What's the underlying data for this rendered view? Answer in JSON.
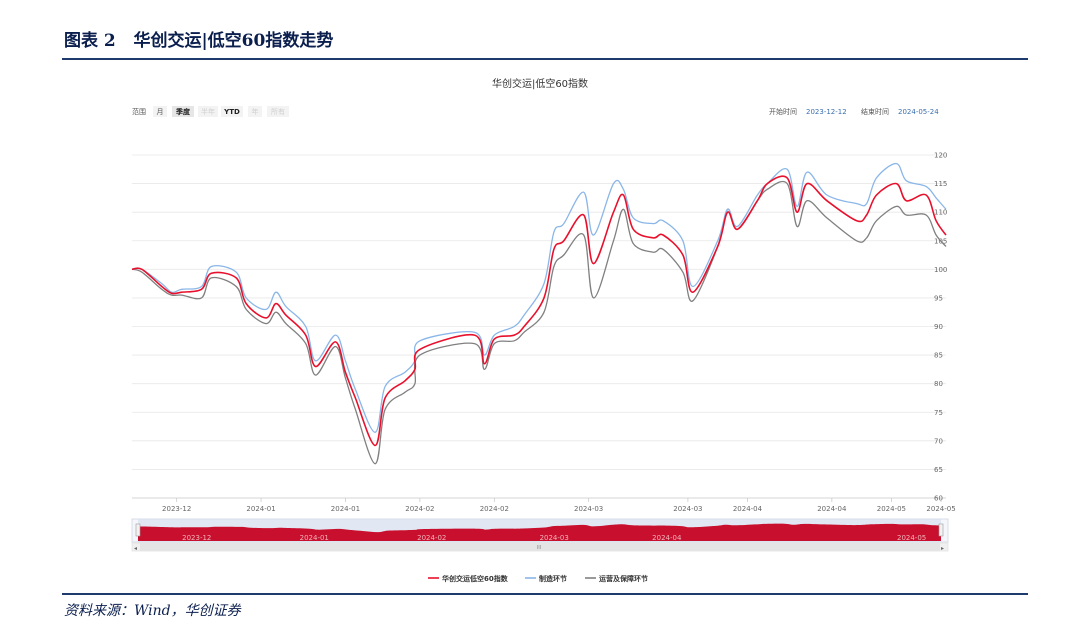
{
  "figure": {
    "title": "图表 2   华创交运|低空60指数走势",
    "source": "资料来源：Wind，华创证券"
  },
  "chart_title": "华创交运|低空60指数",
  "range_selector": {
    "label": "范围",
    "buttons": [
      {
        "label": "月",
        "enabled": true
      },
      {
        "label": "季度",
        "enabled": true,
        "selected": true
      },
      {
        "label": "半年",
        "enabled": false
      },
      {
        "label": "YTD",
        "enabled": true
      },
      {
        "label": "年",
        "enabled": false
      },
      {
        "label": "所有",
        "enabled": false
      }
    ]
  },
  "date_range": {
    "start_label": "开始时间",
    "start": "2023-12-12",
    "end_label": "结束时间",
    "end": "2024-05-24"
  },
  "navigator": {
    "labels": [
      "2023-12",
      "2024-01",
      "2024-02",
      "2024-03",
      "2024-04",
      "2024-05"
    ]
  },
  "colors": {
    "accent": "#1f3b6e",
    "main": "#e8112d",
    "manufacturing": "#8ab6e8",
    "operations": "#808080",
    "navigator": "#c8102e"
  },
  "chart_data": {
    "type": "line",
    "title": "华创交运|低空60指数",
    "xlabel": "",
    "ylabel": "",
    "ylim": [
      60,
      120
    ],
    "yticks": [
      60,
      65,
      70,
      75,
      80,
      85,
      90,
      95,
      100,
      105,
      110,
      115,
      120
    ],
    "grid": true,
    "legend_position": "bottom",
    "x": [
      "2023-12-12",
      "2023-12-14",
      "2023-12-18",
      "2023-12-20",
      "2023-12-22",
      "2023-12-26",
      "2023-12-28",
      "2024-01-02",
      "2024-01-04",
      "2024-01-08",
      "2024-01-10",
      "2024-01-12",
      "2024-01-16",
      "2024-01-18",
      "2024-01-22",
      "2024-01-24",
      "2024-01-26",
      "2024-01-30",
      "2024-02-01",
      "2024-02-05",
      "2024-02-07",
      "2024-02-08",
      "2024-02-19",
      "2024-02-21",
      "2024-02-23",
      "2024-02-27",
      "2024-02-29",
      "2024-03-04",
      "2024-03-06",
      "2024-03-08",
      "2024-03-12",
      "2024-03-14",
      "2024-03-18",
      "2024-03-20",
      "2024-03-22",
      "2024-03-26",
      "2024-03-28",
      "2024-04-01",
      "2024-04-03",
      "2024-04-08",
      "2024-04-10",
      "2024-04-12",
      "2024-04-16",
      "2024-04-18",
      "2024-04-22",
      "2024-04-24",
      "2024-04-26",
      "2024-04-30",
      "2024-05-06",
      "2024-05-08",
      "2024-05-10",
      "2024-05-14",
      "2024-05-16",
      "2024-05-20",
      "2024-05-22",
      "2024-05-24"
    ],
    "xtick_labels": [
      "2023-12",
      "2024-01",
      "2024-01",
      "2024-02",
      "2024-02",
      "2024-03",
      "2024-03",
      "2024-04",
      "2024-04",
      "2024-05",
      "2024-05"
    ],
    "series": [
      {
        "name": "华创交运低空60指数",
        "color": "#e8112d",
        "values": [
          100,
          100,
          97,
          95.8,
          96,
          96.5,
          99.3,
          98.5,
          94,
          91.5,
          94,
          92,
          88.5,
          83,
          87.3,
          82,
          77.5,
          69.2,
          77.5,
          80.5,
          82.5,
          86,
          88.5,
          83.5,
          87.8,
          88.5,
          90,
          95,
          103.5,
          105,
          109.5,
          101,
          110,
          113,
          107,
          105.5,
          106,
          102.5,
          96,
          104,
          110,
          107,
          112,
          115,
          116,
          110,
          115,
          112,
          108.5,
          109.5,
          113,
          115,
          112,
          113,
          108.5,
          106
        ]
      },
      {
        "name": "制造环节",
        "color": "#8ab6e8",
        "values": [
          100,
          100,
          97.5,
          96,
          96.5,
          97,
          100.5,
          99.5,
          95,
          93,
          96,
          93.5,
          90,
          84,
          88.5,
          84,
          79,
          71.5,
          79.5,
          82,
          84,
          87.5,
          89,
          85,
          88.5,
          90,
          92,
          97.5,
          106.5,
          108,
          113.5,
          106,
          115,
          114,
          109,
          108,
          108.5,
          105,
          97,
          105,
          110.5,
          107.5,
          113,
          115,
          117.5,
          111,
          117,
          113,
          111.5,
          111.5,
          116,
          118.5,
          115.5,
          114.5,
          112.5,
          110.5
        ]
      },
      {
        "name": "运营及保障环节",
        "color": "#808080",
        "values": [
          100,
          99.5,
          96.5,
          95.5,
          95.5,
          95,
          98.5,
          97,
          93,
          90.5,
          92.5,
          90.5,
          87,
          81.5,
          86.5,
          81,
          75.5,
          66,
          75.5,
          78.5,
          80,
          85,
          87,
          82.5,
          87,
          87.5,
          89,
          92.5,
          100.5,
          102.5,
          106,
          95,
          105,
          110.5,
          104.5,
          103,
          103.5,
          99.5,
          94.5,
          104,
          110.5,
          107,
          112,
          114,
          115,
          107.5,
          112,
          109,
          105,
          105.5,
          108.5,
          111,
          109.5,
          109.5,
          106,
          104
        ]
      }
    ]
  }
}
